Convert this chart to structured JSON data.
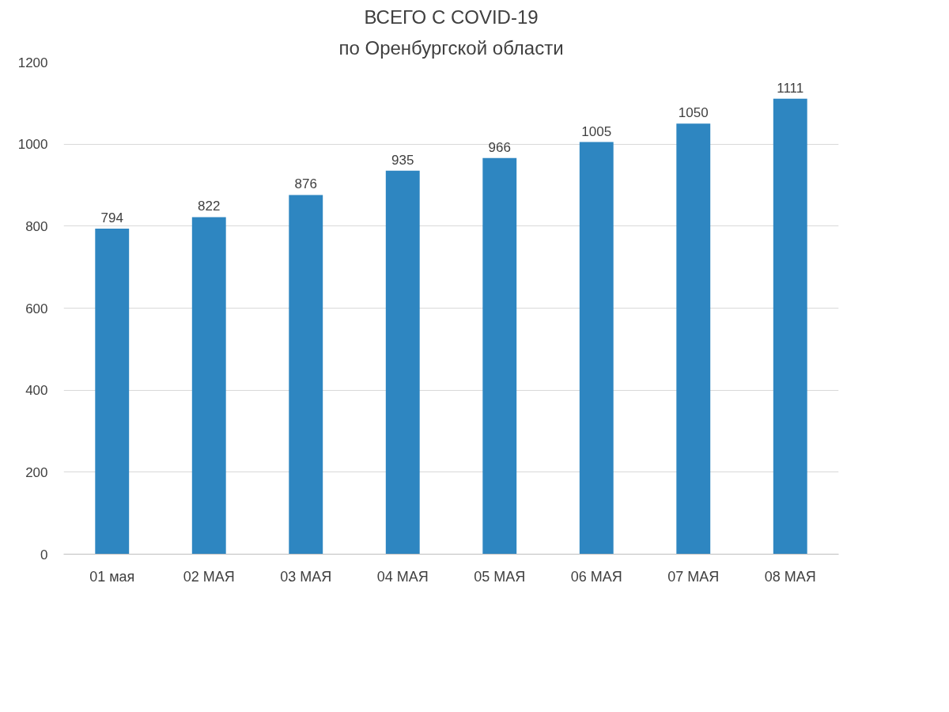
{
  "chart_data": {
    "type": "bar",
    "title": "ВСЕГО С COVID-19",
    "subtitle": "по Оренбургской области",
    "categories": [
      "01 мая",
      "02 МАЯ",
      "03 МАЯ",
      "04 МАЯ",
      "05 МАЯ",
      "06 МАЯ",
      "07 МАЯ",
      "08 МАЯ"
    ],
    "values": [
      794,
      822,
      876,
      935,
      966,
      1005,
      1050,
      1111
    ],
    "color": "#2e86c1",
    "ylim": [
      0,
      1200
    ],
    "yticks": [
      0,
      200,
      400,
      600,
      800,
      1000,
      1200
    ],
    "grid": "y",
    "data_labels": true
  }
}
